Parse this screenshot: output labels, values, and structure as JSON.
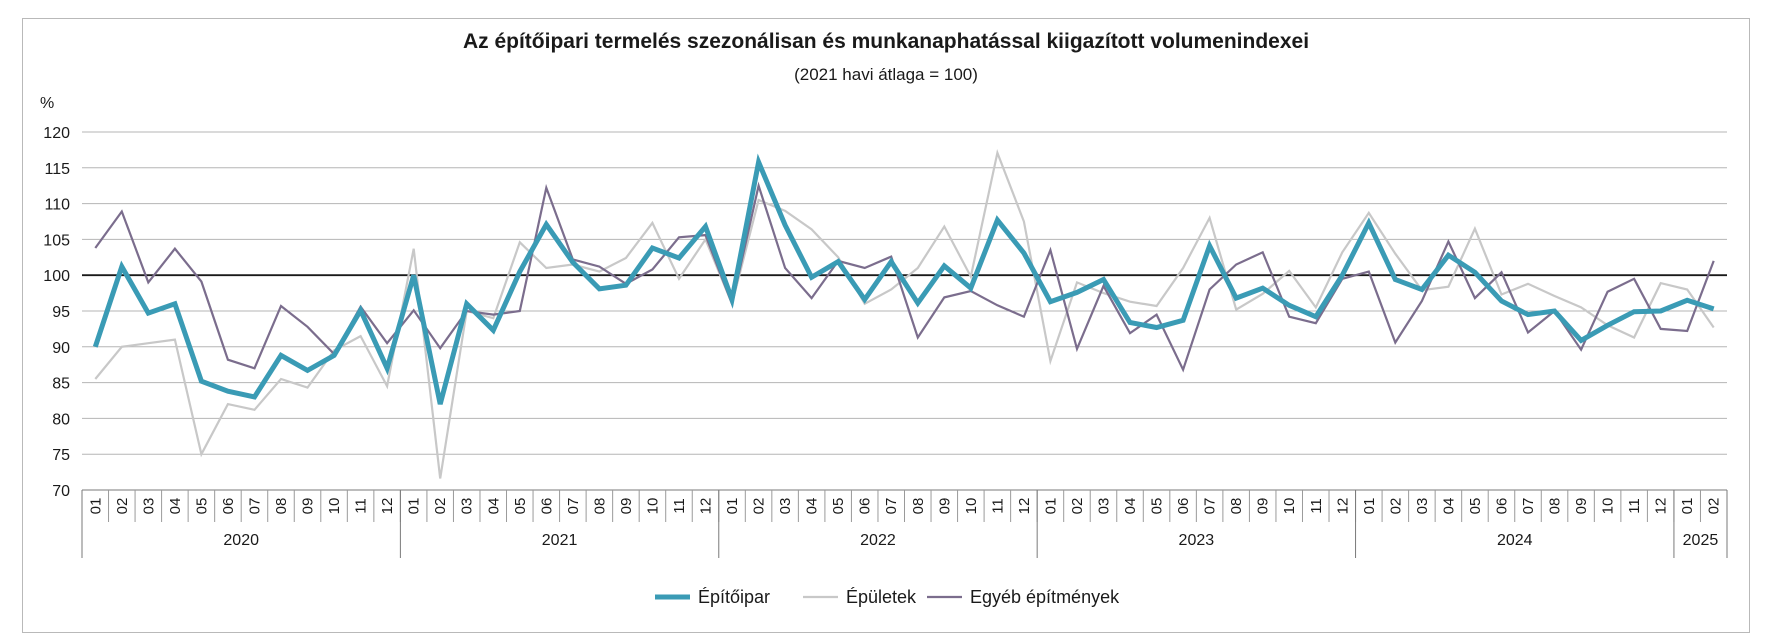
{
  "chart_data": {
    "type": "line",
    "title": "Az építőipari termelés szezonálisan és munkanaphatással kiigazított volumenindexei",
    "subtitle": "(2021 havi átlaga = 100)",
    "ylabel": "%",
    "ylim": [
      70,
      120
    ],
    "yticks": [
      70,
      75,
      80,
      85,
      90,
      95,
      100,
      105,
      110,
      115,
      120
    ],
    "reference_line": 100,
    "grid": true,
    "legend_position": "bottom",
    "years": [
      {
        "label": "2020",
        "months": 12
      },
      {
        "label": "2021",
        "months": 12
      },
      {
        "label": "2022",
        "months": 12
      },
      {
        "label": "2023",
        "months": 12
      },
      {
        "label": "2024",
        "months": 12
      },
      {
        "label": "2025",
        "months": 2
      }
    ],
    "x": [
      "01",
      "02",
      "03",
      "04",
      "05",
      "06",
      "07",
      "08",
      "09",
      "10",
      "11",
      "12",
      "01",
      "02",
      "03",
      "04",
      "05",
      "06",
      "07",
      "08",
      "09",
      "10",
      "11",
      "12",
      "01",
      "02",
      "03",
      "04",
      "05",
      "06",
      "07",
      "08",
      "09",
      "10",
      "11",
      "12",
      "01",
      "02",
      "03",
      "04",
      "05",
      "06",
      "07",
      "08",
      "09",
      "10",
      "11",
      "12",
      "01",
      "02",
      "03",
      "04",
      "05",
      "06",
      "07",
      "08",
      "09",
      "10",
      "11",
      "12",
      "01",
      "02"
    ],
    "series": [
      {
        "name": "Épületek",
        "color": "#c8c8c8",
        "width": 2.2,
        "values": [
          85.5,
          90.0,
          90.5,
          91.0,
          75.0,
          82.0,
          81.2,
          85.5,
          84.3,
          89.5,
          91.5,
          84.5,
          103.7,
          71.6,
          95.0,
          94.0,
          104.6,
          101.0,
          101.5,
          100.5,
          102.4,
          107.3,
          99.5,
          105.0,
          96.0,
          110.5,
          109.0,
          106.4,
          102.5,
          96.0,
          98.0,
          101.0,
          106.8,
          99.8,
          117.1,
          107.5,
          88.0,
          99.0,
          97.5,
          96.3,
          95.7,
          101.0,
          108.0,
          95.2,
          97.4,
          100.6,
          95.5,
          103.2,
          108.7,
          103.0,
          97.9,
          98.4,
          106.5,
          97.3,
          98.8,
          97.1,
          95.5,
          93.0,
          91.3,
          98.9,
          98.0,
          92.7
        ]
      },
      {
        "name": "Egyéb építmények",
        "color": "#7b6d8d",
        "width": 2.2,
        "values": [
          103.8,
          108.9,
          99.0,
          103.7,
          99.1,
          88.2,
          87.0,
          95.7,
          92.8,
          89.0,
          95.6,
          90.5,
          95.1,
          89.8,
          95.0,
          94.5,
          95.0,
          112.2,
          102.2,
          101.2,
          98.8,
          100.8,
          105.3,
          105.6,
          96.0,
          112.5,
          101.0,
          96.8,
          102.0,
          101.0,
          102.6,
          91.3,
          96.9,
          97.8,
          95.8,
          94.2,
          103.5,
          89.7,
          98.5,
          91.9,
          94.5,
          86.8,
          98.0,
          101.5,
          103.2,
          94.2,
          93.3,
          99.5,
          100.5,
          90.6,
          96.4,
          104.7,
          96.8,
          100.4,
          92.0,
          95.0,
          89.6,
          97.7,
          99.5,
          92.5,
          92.2,
          102.0
        ]
      },
      {
        "name": "Építőipar",
        "color": "#3a9bb5",
        "width": 5,
        "values": [
          90.0,
          101.2,
          94.7,
          96.0,
          85.2,
          83.8,
          83.0,
          88.8,
          86.7,
          88.8,
          95.1,
          87.0,
          100.0,
          82.0,
          96.0,
          92.3,
          100.5,
          107.1,
          101.8,
          98.1,
          98.6,
          103.8,
          102.4,
          106.8,
          96.6,
          115.8,
          107.0,
          99.7,
          101.9,
          96.6,
          101.9,
          96.1,
          101.3,
          98.2,
          107.7,
          103.1,
          96.3,
          97.6,
          99.4,
          93.4,
          92.7,
          93.7,
          104.1,
          96.8,
          98.2,
          95.8,
          94.2,
          100.0,
          107.3,
          99.4,
          98.0,
          102.8,
          100.4,
          96.4,
          94.5,
          95.0,
          90.9,
          93.0,
          94.9,
          95.0,
          96.5,
          95.3
        ]
      }
    ],
    "legend": [
      "Építőipar",
      "Épületek",
      "Egyéb építmények"
    ]
  }
}
